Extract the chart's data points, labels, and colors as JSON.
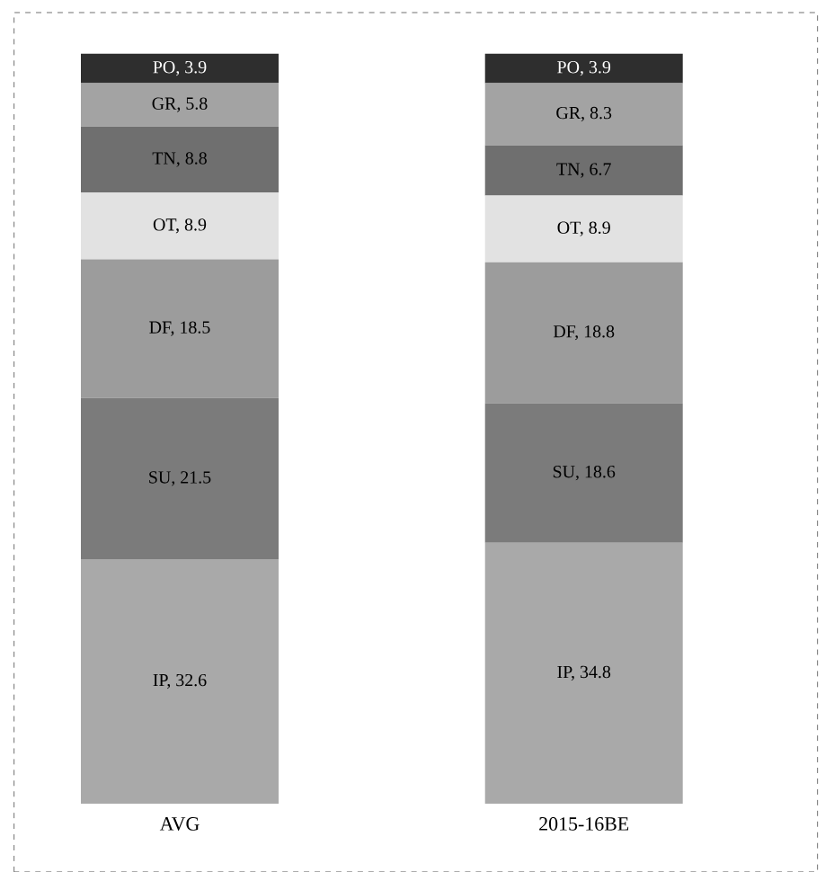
{
  "chart_data": {
    "type": "bar",
    "stacked": true,
    "categories": [
      "AVG",
      "2015-16BE"
    ],
    "series": [
      {
        "color": "#a9a9a9",
        "values": [
          32.6,
          34.8
        ],
        "value_labels": [
          "IP, 32.6",
          "IP, 34.8"
        ]
      },
      {
        "color": "#7b7b7b",
        "values": [
          21.5,
          18.6
        ],
        "value_labels": [
          "SU, 21.5",
          "SU, 18.6"
        ]
      },
      {
        "color": "#9c9c9c",
        "values": [
          18.5,
          18.8
        ],
        "value_labels": [
          "DF, 18.5",
          "DF, 18.8"
        ]
      },
      {
        "color": "#e2e2e2",
        "values": [
          8.9,
          8.9
        ],
        "value_labels": [
          "OT, 8.9",
          "OT, 8.9"
        ]
      },
      {
        "color": "#6f6f6f",
        "values": [
          8.8,
          6.7
        ],
        "value_labels": [
          "TN, 8.8",
          "TN, 6.7"
        ]
      },
      {
        "color": "#a3a3a3",
        "values": [
          5.8,
          8.3
        ],
        "value_labels": [
          "GR, 5.8",
          "GR, 8.3"
        ]
      },
      {
        "color": "#2e2e2e",
        "values": [
          3.9,
          3.9
        ],
        "value_labels": [
          "PO, 3.9",
          "PO, 3.9"
        ]
      }
    ]
  }
}
